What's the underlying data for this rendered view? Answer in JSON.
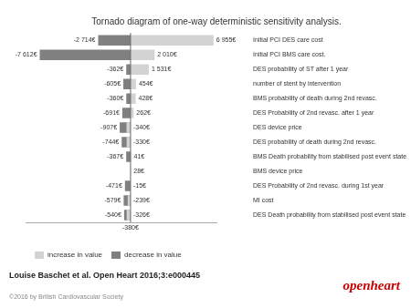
{
  "chart_data": {
    "type": "bar",
    "orientation": "horizontal",
    "title": "Tornado diagram of one-way deterministic sensitivity analysis.",
    "categories": [
      "Initial PCI DES care cost",
      "Initial PCI BMS care cost.",
      "DES probability of ST after 1 year",
      "number of stent by intervention",
      "BMS probability of death during 2nd revasc.",
      "DES Probability of 2nd revasc. after 1 year",
      "DES device price",
      "DES probability of death during 2nd revasc.",
      "BMS Death probability from stabilised post event state",
      "BMS device price",
      "DES Probability of 2nd revasc. during 1st year",
      "MI cost",
      "DES Death probability from stabilised post event state"
    ],
    "series": [
      {
        "name": "increase in value",
        "color": "#d3d3d3",
        "values": [
          6955,
          2010,
          1531,
          454,
          428,
          262,
          -340,
          -330,
          41,
          28,
          -15,
          -239,
          -326
        ],
        "value_labels": [
          "6 955€",
          "2 010€",
          "1 531€",
          "454€",
          "428€",
          "262€",
          "-340€",
          "-330€",
          "41€",
          "28€",
          "-15€",
          "-239€",
          "-326€"
        ]
      },
      {
        "name": "decrease in value",
        "color": "#808080",
        "values": [
          -2714,
          -7612,
          -362,
          -605,
          -360,
          -691,
          -907,
          -744,
          -367,
          0,
          -471,
          -579,
          -540
        ],
        "value_labels": [
          "-2 714€",
          "-7 612€",
          "-362€",
          "-605€",
          "-360€",
          "-691€",
          "-907€",
          "-744€",
          "-367€",
          null,
          "-471€",
          "-579€",
          "-540€"
        ]
      }
    ],
    "xlim": [
      -8800,
      7200
    ],
    "tick_labels": "y",
    "grid": false,
    "legend": "bottom",
    "data_labels": true,
    "annotations": [
      {
        "text": "-380€",
        "x": 0
      },
      {
        "text": "Louise Baschet et al. Open Heart 2016;3:e000445"
      },
      {
        "text": "©2016 by British Cardiovascular Society"
      },
      {
        "text": "openheart",
        "color": "#cc0000"
      }
    ]
  }
}
